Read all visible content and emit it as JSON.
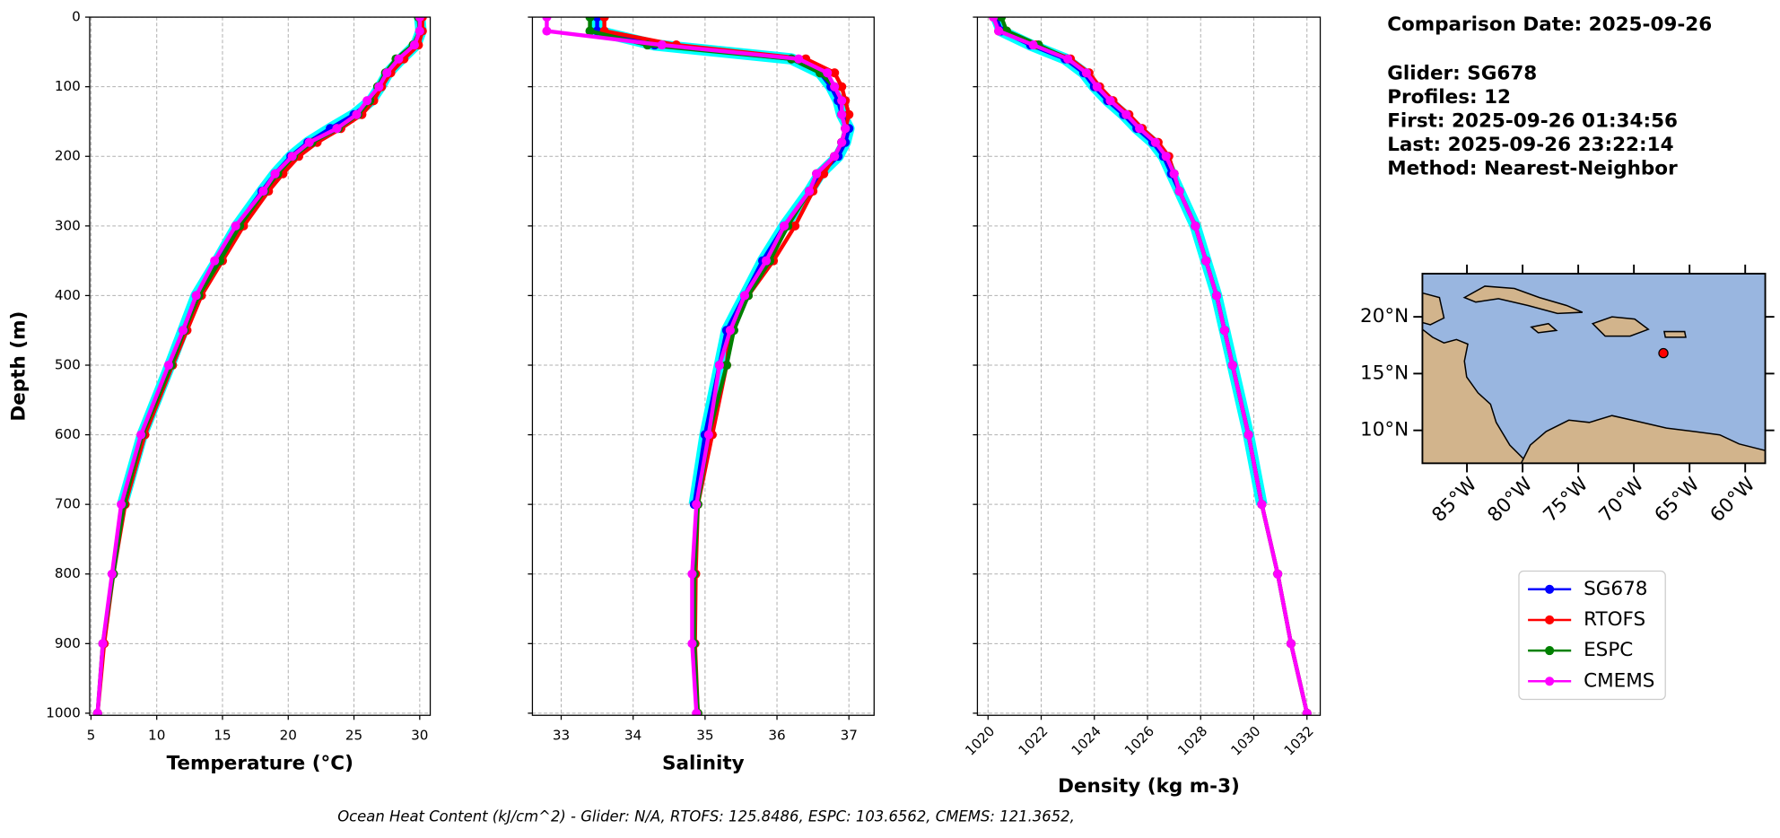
{
  "chart_data": [
    {
      "type": "profile",
      "xlabel": "Temperature (°C)",
      "ylabel": "Depth (m)",
      "xlim": [
        4.9,
        30.8
      ],
      "ylim": [
        1003,
        0
      ],
      "xticks": [
        5,
        10,
        15,
        20,
        25,
        30
      ],
      "yticks": [
        0,
        100,
        200,
        300,
        400,
        500,
        600,
        700,
        800,
        900,
        1000
      ],
      "ytick_labels": true,
      "grid": true,
      "y": [
        0,
        20,
        40,
        60,
        80,
        100,
        120,
        140,
        160,
        180,
        200,
        225,
        250,
        300,
        350,
        400,
        450,
        500,
        600,
        700,
        800,
        900,
        1000
      ],
      "series": [
        {
          "name": "SG678",
          "color": "blue",
          "values": [
            30.0,
            30.1,
            29.7,
            28.6,
            27.6,
            27.0,
            26.3,
            25.0,
            23.2,
            21.5,
            20.2,
            19.0,
            18.0,
            16.1,
            14.6,
            13.0,
            12.0,
            11.0,
            8.9,
            7.4,
            null,
            null,
            null
          ]
        },
        {
          "name": "RTOFS",
          "color": "red",
          "values": [
            30.2,
            30.2,
            29.9,
            28.8,
            27.8,
            27.1,
            26.5,
            25.6,
            24.0,
            22.2,
            20.8,
            19.6,
            18.5,
            16.6,
            15.0,
            13.4,
            12.3,
            11.2,
            9.1,
            7.6,
            6.7,
            6.0,
            5.5
          ]
        },
        {
          "name": "ESPC",
          "color": "green",
          "values": [
            29.9,
            30.0,
            29.5,
            28.2,
            27.4,
            26.8,
            26.2,
            25.3,
            23.8,
            21.8,
            20.4,
            19.2,
            18.2,
            16.3,
            14.8,
            13.2,
            12.1,
            11.1,
            8.9,
            7.5,
            6.7,
            5.9,
            5.5
          ]
        },
        {
          "name": "CMEMS",
          "color": "magenta",
          "values": [
            30.0,
            30.0,
            29.6,
            28.4,
            27.5,
            26.9,
            26.0,
            25.2,
            23.7,
            21.6,
            20.3,
            19.0,
            18.1,
            16.0,
            14.4,
            13.0,
            12.0,
            10.9,
            8.8,
            7.3,
            6.6,
            5.9,
            5.5
          ]
        }
      ]
    },
    {
      "type": "profile",
      "xlabel": "Salinity",
      "xlim": [
        32.6,
        37.35
      ],
      "ylim": [
        1003,
        0
      ],
      "xticks": [
        33,
        34,
        35,
        36,
        37
      ],
      "yticks": [
        0,
        100,
        200,
        300,
        400,
        500,
        600,
        700,
        800,
        900,
        1000
      ],
      "ytick_labels": false,
      "grid": true,
      "y": [
        0,
        20,
        40,
        60,
        80,
        100,
        120,
        140,
        160,
        180,
        200,
        225,
        250,
        300,
        350,
        400,
        450,
        500,
        600,
        700,
        800,
        900,
        1000
      ],
      "series": [
        {
          "color": "blue",
          "values": [
            33.5,
            33.5,
            34.3,
            36.2,
            36.6,
            36.75,
            36.85,
            36.9,
            37.0,
            36.95,
            36.85,
            36.6,
            36.45,
            36.1,
            35.8,
            35.55,
            35.3,
            35.2,
            35.0,
            34.85,
            null,
            null,
            null
          ]
        },
        {
          "color": "red",
          "values": [
            33.6,
            33.6,
            34.6,
            36.4,
            36.8,
            36.9,
            36.95,
            37.0,
            36.95,
            36.9,
            36.8,
            36.65,
            36.5,
            36.25,
            35.95,
            35.6,
            35.35,
            35.3,
            35.1,
            34.9,
            34.87,
            34.86,
            34.9
          ]
        },
        {
          "color": "green",
          "values": [
            33.4,
            33.4,
            34.2,
            36.2,
            36.6,
            36.8,
            36.9,
            36.9,
            36.95,
            36.9,
            36.8,
            36.55,
            36.45,
            36.15,
            35.9,
            35.6,
            35.4,
            35.3,
            35.05,
            34.9,
            34.85,
            34.85,
            34.9
          ]
        },
        {
          "color": "magenta",
          "values": [
            32.8,
            32.8,
            34.4,
            36.3,
            36.7,
            36.8,
            36.9,
            36.9,
            36.95,
            36.9,
            36.8,
            36.55,
            36.45,
            36.1,
            35.85,
            35.55,
            35.35,
            35.2,
            35.05,
            34.88,
            34.82,
            34.82,
            34.88
          ]
        }
      ]
    },
    {
      "type": "profile",
      "xlabel": "Density (kg m-3)",
      "xlim": [
        1019.6,
        1032.5
      ],
      "ylim": [
        1003,
        0
      ],
      "xticks": [
        1020,
        1022,
        1024,
        1026,
        1028,
        1030,
        1032
      ],
      "xtick_rotation": 45,
      "yticks": [
        0,
        100,
        200,
        300,
        400,
        500,
        600,
        700,
        800,
        900,
        1000
      ],
      "ytick_labels": false,
      "grid": true,
      "y": [
        0,
        20,
        40,
        60,
        80,
        100,
        120,
        140,
        160,
        180,
        200,
        225,
        250,
        300,
        350,
        400,
        450,
        500,
        600,
        700,
        800,
        900,
        1000
      ],
      "series": [
        {
          "color": "blue",
          "values": [
            1020.3,
            1020.5,
            1021.6,
            1022.9,
            1023.6,
            1024.0,
            1024.5,
            1025.1,
            1025.6,
            1026.2,
            1026.6,
            1026.9,
            1027.2,
            1027.8,
            1028.2,
            1028.6,
            1028.9,
            1029.2,
            1029.8,
            1030.3,
            null,
            null,
            null
          ]
        },
        {
          "color": "red",
          "values": [
            1020.2,
            1020.4,
            1021.8,
            1023.1,
            1023.8,
            1024.2,
            1024.7,
            1025.3,
            1025.8,
            1026.4,
            1026.8,
            1027.0,
            1027.2,
            1027.8,
            1028.2,
            1028.6,
            1028.9,
            1029.2,
            1029.8,
            1030.3,
            1030.9,
            1031.4,
            1032.0
          ]
        },
        {
          "color": "green",
          "values": [
            1020.5,
            1020.7,
            1021.9,
            1023.0,
            1023.7,
            1024.1,
            1024.6,
            1025.2,
            1025.7,
            1026.3,
            1026.7,
            1027.0,
            1027.2,
            1027.8,
            1028.2,
            1028.6,
            1028.9,
            1029.2,
            1029.8,
            1030.3,
            1030.9,
            1031.4,
            1032.0
          ]
        },
        {
          "color": "magenta",
          "values": [
            1020.2,
            1020.4,
            1021.7,
            1023.0,
            1023.7,
            1024.1,
            1024.6,
            1025.2,
            1025.7,
            1026.3,
            1026.7,
            1027.0,
            1027.2,
            1027.8,
            1028.2,
            1028.6,
            1028.9,
            1029.2,
            1029.8,
            1030.3,
            1030.9,
            1031.4,
            1032.0
          ]
        }
      ]
    },
    {
      "type": "map",
      "xlim": [
        -89.0,
        -58.2
      ],
      "ylim": [
        7.1,
        23.8
      ],
      "xticks": [
        {
          "value": -85,
          "label": "85°W"
        },
        {
          "value": -80,
          "label": "80°W"
        },
        {
          "value": -75,
          "label": "75°W"
        },
        {
          "value": -70,
          "label": "70°W"
        },
        {
          "value": -65,
          "label": "65°W"
        },
        {
          "value": -60,
          "label": "60°W"
        }
      ],
      "yticks": [
        {
          "value": 10,
          "label": "10°N"
        },
        {
          "value": 15,
          "label": "15°N"
        },
        {
          "value": 20,
          "label": "20°N"
        }
      ],
      "point": {
        "lon": -67.35,
        "lat": 16.8,
        "color": "red"
      }
    }
  ],
  "annotations": {
    "info": [
      "Comparison Date: 2025-09-26",
      "",
      "Glider: SG678",
      "Profiles: 12",
      "First: 2025-09-26 01:34:56",
      "Last: 2025-09-26 23:22:14",
      "Method: Nearest-Neighbor"
    ],
    "footer": "Ocean Heat Content (kJ/cm^2) - Glider: N/A,  RTOFS: 125.8486,  ESPC: 103.6562,  CMEMS: 121.3652,"
  }
}
